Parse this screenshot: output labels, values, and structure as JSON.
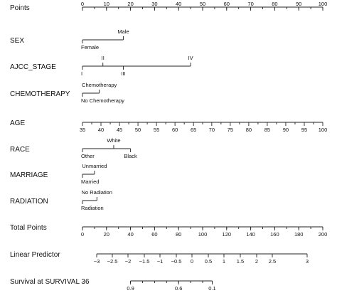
{
  "chart_data": {
    "type": "nomogram",
    "rows": [
      {
        "label": "Points",
        "kind": "scale",
        "min": 0,
        "max": 100,
        "ticks": [
          0,
          10,
          20,
          30,
          40,
          50,
          60,
          70,
          80,
          90,
          100
        ],
        "minor_ticks": [
          0,
          5,
          10,
          15,
          20,
          25,
          30,
          35,
          40,
          45,
          50,
          55,
          60,
          65,
          70,
          75,
          80,
          85,
          90,
          95,
          100
        ]
      },
      {
        "label": "SEX",
        "kind": "categorical",
        "levels": [
          {
            "name": "Female",
            "points": 0,
            "side": "below"
          },
          {
            "name": "Male",
            "points": 17,
            "side": "above"
          }
        ]
      },
      {
        "label": "AJCC_STAGE",
        "kind": "categorical",
        "levels": [
          {
            "name": "I",
            "points": 0,
            "side": "below"
          },
          {
            "name": "II",
            "points": 8.5,
            "side": "above"
          },
          {
            "name": "III",
            "points": 17,
            "side": "below"
          },
          {
            "name": "IV",
            "points": 45,
            "side": "above"
          }
        ]
      },
      {
        "label": "CHEMOTHERAPY",
        "kind": "categorical",
        "levels": [
          {
            "name": "No Chemotherapy",
            "points": 0,
            "side": "below"
          },
          {
            "name": "Chemotherapy",
            "points": 7,
            "side": "above"
          }
        ]
      },
      {
        "label": "AGE",
        "kind": "continuous",
        "values": [
          35,
          40,
          45,
          50,
          55,
          60,
          65,
          70,
          75,
          80,
          85,
          90,
          95,
          100
        ],
        "points": [
          0,
          7.7,
          15.4,
          23.1,
          30.8,
          38.5,
          46.2,
          53.8,
          61.5,
          69.2,
          76.9,
          84.6,
          92.3,
          100
        ]
      },
      {
        "label": "RACE",
        "kind": "categorical",
        "levels": [
          {
            "name": "Other",
            "points": 0,
            "side": "below"
          },
          {
            "name": "White",
            "points": 13,
            "side": "above"
          },
          {
            "name": "Black",
            "points": 20,
            "side": "below"
          }
        ]
      },
      {
        "label": "MARRIAGE",
        "kind": "categorical",
        "levels": [
          {
            "name": "Married",
            "points": 0,
            "side": "below"
          },
          {
            "name": "Unmarried",
            "points": 5,
            "side": "above"
          }
        ]
      },
      {
        "label": "RADIATION",
        "kind": "categorical",
        "levels": [
          {
            "name": "Radiation",
            "points": 0,
            "side": "below"
          },
          {
            "name": "No Radiation",
            "points": 6,
            "side": "above"
          }
        ]
      },
      {
        "label": "Total Points",
        "kind": "scale",
        "min": 0,
        "max": 200,
        "ticks": [
          0,
          20,
          40,
          60,
          80,
          100,
          120,
          140,
          160,
          180,
          200
        ],
        "minor_ticks": [
          0,
          10,
          20,
          30,
          40,
          50,
          60,
          70,
          80,
          90,
          100,
          110,
          120,
          130,
          140,
          150,
          160,
          170,
          180,
          190,
          200
        ]
      },
      {
        "label": "Linear Predictor",
        "kind": "mapped_scale",
        "tick_labels": [
          "−3",
          "−2.5",
          "−2",
          "−1.5",
          "−1",
          "−0.5",
          "0",
          "0.5",
          "1",
          "1.5",
          "2",
          "2.5",
          "3"
        ],
        "total_points": [
          7,
          17.7,
          28.3,
          39,
          49.7,
          60.3,
          71,
          81.7,
          92.3,
          103,
          113.7,
          124.3,
          135
        ]
      },
      {
        "label": "Survival at SURVIVAL 36",
        "kind": "mapped_scale",
        "tick_labels": [
          "0.9",
          "0.6",
          "0.1"
        ],
        "total_points": [
          40,
          80,
          108
        ],
        "minor_total_points": [
          40,
          50,
          60,
          70,
          80,
          90,
          100,
          108
        ]
      }
    ]
  }
}
